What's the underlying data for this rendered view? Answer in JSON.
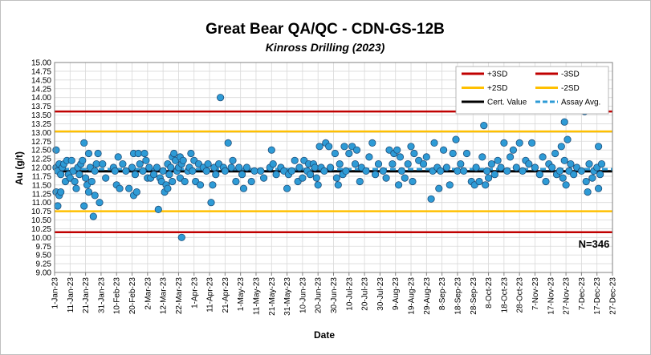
{
  "chart_data": {
    "type": "scatter",
    "title": "Great Bear QA/QC - CDN-GS-12B",
    "subtitle": "Kinross Drilling (2023)",
    "xlabel": "Date",
    "ylabel": "Au (g/t)",
    "ylim": [
      9.0,
      15.0
    ],
    "y_tick_step": 0.25,
    "xlim": [
      "2023-01-01",
      "2023-12-27"
    ],
    "x_tick_labels": [
      "1-Jan-23",
      "11-Jan-23",
      "21-Jan-23",
      "31-Jan-23",
      "10-Feb-23",
      "20-Feb-23",
      "2-Mar-23",
      "12-Mar-23",
      "22-Mar-23",
      "1-Apr-23",
      "11-Apr-23",
      "21-Apr-23",
      "1-May-23",
      "11-May-23",
      "21-May-23",
      "31-May-23",
      "10-Jun-23",
      "20-Jun-23",
      "30-Jun-23",
      "10-Jul-23",
      "20-Jul-23",
      "30-Jul-23",
      "9-Aug-23",
      "19-Aug-23",
      "29-Aug-23",
      "8-Sep-23",
      "18-Sep-23",
      "28-Sep-23",
      "8-Oct-23",
      "18-Oct-23",
      "28-Oct-23",
      "7-Nov-23",
      "17-Nov-23",
      "27-Nov-23",
      "7-Dec-23",
      "17-Dec-23",
      "27-Dec-23"
    ],
    "grid": true,
    "legend_position": "top-right",
    "annotation": "N=346",
    "reference_lines": [
      {
        "name": "+3SD",
        "value": 13.6,
        "color": "#c00000",
        "style": "solid"
      },
      {
        "name": "-3SD",
        "value": 10.15,
        "color": "#c00000",
        "style": "solid"
      },
      {
        "name": "+2SD",
        "value": 13.03,
        "color": "#ffc000",
        "style": "solid"
      },
      {
        "name": "-2SD",
        "value": 10.75,
        "color": "#ffc000",
        "style": "solid"
      },
      {
        "name": "Cert. Value",
        "value": 11.89,
        "color": "#000000",
        "style": "solid"
      },
      {
        "name": "Assay Avg.",
        "value": 11.95,
        "color": "#2e9bd6",
        "style": "dashed"
      }
    ],
    "series": [
      {
        "marker_color": "#2e9bd6",
        "points": [
          [
            "2023-01-02",
            12.5
          ],
          [
            "2023-01-02",
            11.3
          ],
          [
            "2023-01-02",
            12.0
          ],
          [
            "2023-01-03",
            11.9
          ],
          [
            "2023-01-03",
            10.9
          ],
          [
            "2023-01-04",
            11.2
          ],
          [
            "2023-01-04",
            12.1
          ],
          [
            "2023-01-05",
            11.8
          ],
          [
            "2023-01-05",
            11.3
          ],
          [
            "2023-01-06",
            12.0
          ],
          [
            "2023-01-07",
            12.1
          ],
          [
            "2023-01-08",
            11.6
          ],
          [
            "2023-01-09",
            12.2
          ],
          [
            "2023-01-10",
            11.8
          ],
          [
            "2023-01-11",
            11.7
          ],
          [
            "2023-01-12",
            12.2
          ],
          [
            "2023-01-13",
            11.9
          ],
          [
            "2023-01-14",
            11.6
          ],
          [
            "2023-01-15",
            11.4
          ],
          [
            "2023-01-16",
            12.0
          ],
          [
            "2023-01-17",
            11.8
          ],
          [
            "2023-01-18",
            12.1
          ],
          [
            "2023-01-19",
            12.2
          ],
          [
            "2023-01-20",
            10.9
          ],
          [
            "2023-01-20",
            12.7
          ],
          [
            "2023-01-21",
            11.7
          ],
          [
            "2023-01-22",
            11.5
          ],
          [
            "2023-01-23",
            12.4
          ],
          [
            "2023-01-23",
            11.3
          ],
          [
            "2023-01-24",
            12.0
          ],
          [
            "2023-01-25",
            11.6
          ],
          [
            "2023-01-26",
            10.6
          ],
          [
            "2023-01-27",
            11.9
          ],
          [
            "2023-01-27",
            11.2
          ],
          [
            "2023-01-28",
            12.1
          ],
          [
            "2023-01-29",
            12.4
          ],
          [
            "2023-01-30",
            11.0
          ],
          [
            "2023-02-01",
            12.1
          ],
          [
            "2023-02-03",
            11.7
          ],
          [
            "2023-02-08",
            12.0
          ],
          [
            "2023-02-09",
            11.9
          ],
          [
            "2023-02-10",
            11.5
          ],
          [
            "2023-02-11",
            12.3
          ],
          [
            "2023-02-12",
            11.4
          ],
          [
            "2023-02-14",
            12.1
          ],
          [
            "2023-02-16",
            11.9
          ],
          [
            "2023-02-18",
            11.4
          ],
          [
            "2023-02-20",
            12.0
          ],
          [
            "2023-02-21",
            11.2
          ],
          [
            "2023-02-21",
            12.4
          ],
          [
            "2023-02-22",
            11.8
          ],
          [
            "2023-02-23",
            11.3
          ],
          [
            "2023-02-24",
            12.4
          ],
          [
            "2023-02-25",
            12.1
          ],
          [
            "2023-02-27",
            11.9
          ],
          [
            "2023-02-28",
            12.4
          ],
          [
            "2023-03-01",
            12.2
          ],
          [
            "2023-03-02",
            11.7
          ],
          [
            "2023-03-03",
            12.0
          ],
          [
            "2023-03-04",
            11.7
          ],
          [
            "2023-03-06",
            11.8
          ],
          [
            "2023-03-08",
            12.0
          ],
          [
            "2023-03-09",
            10.8
          ],
          [
            "2023-03-10",
            11.7
          ],
          [
            "2023-03-11",
            11.6
          ],
          [
            "2023-03-12",
            11.9
          ],
          [
            "2023-03-13",
            11.3
          ],
          [
            "2023-03-14",
            11.5
          ],
          [
            "2023-03-15",
            12.1
          ],
          [
            "2023-03-15",
            11.4
          ],
          [
            "2023-03-16",
            11.8
          ],
          [
            "2023-03-17",
            12.0
          ],
          [
            "2023-03-18",
            12.3
          ],
          [
            "2023-03-18",
            11.6
          ],
          [
            "2023-03-19",
            12.4
          ],
          [
            "2023-03-20",
            12.2
          ],
          [
            "2023-03-21",
            11.9
          ],
          [
            "2023-03-22",
            12.0
          ],
          [
            "2023-03-23",
            12.3
          ],
          [
            "2023-03-23",
            11.7
          ],
          [
            "2023-03-24",
            12.1
          ],
          [
            "2023-03-24",
            10.0
          ],
          [
            "2023-03-25",
            12.2
          ],
          [
            "2023-03-26",
            11.6
          ],
          [
            "2023-03-28",
            11.9
          ],
          [
            "2023-03-29",
            12.0
          ],
          [
            "2023-03-30",
            12.4
          ],
          [
            "2023-03-31",
            11.9
          ],
          [
            "2023-04-01",
            12.2
          ],
          [
            "2023-04-02",
            11.6
          ],
          [
            "2023-04-04",
            12.1
          ],
          [
            "2023-04-05",
            11.5
          ],
          [
            "2023-04-07",
            12.0
          ],
          [
            "2023-04-09",
            11.9
          ],
          [
            "2023-04-10",
            12.1
          ],
          [
            "2023-04-12",
            11.0
          ],
          [
            "2023-04-13",
            11.5
          ],
          [
            "2023-04-14",
            12.0
          ],
          [
            "2023-04-15",
            11.8
          ],
          [
            "2023-04-17",
            12.1
          ],
          [
            "2023-04-18",
            14.0
          ],
          [
            "2023-04-20",
            12.0
          ],
          [
            "2023-04-21",
            11.9
          ],
          [
            "2023-04-23",
            12.7
          ],
          [
            "2023-04-25",
            12.0
          ],
          [
            "2023-04-26",
            12.2
          ],
          [
            "2023-04-28",
            11.6
          ],
          [
            "2023-04-30",
            12.0
          ],
          [
            "2023-05-02",
            11.8
          ],
          [
            "2023-05-03",
            11.4
          ],
          [
            "2023-05-05",
            12.0
          ],
          [
            "2023-05-08",
            11.6
          ],
          [
            "2023-05-10",
            11.9
          ],
          [
            "2023-05-14",
            11.9
          ],
          [
            "2023-05-16",
            11.7
          ],
          [
            "2023-05-20",
            12.0
          ],
          [
            "2023-05-21",
            12.5
          ],
          [
            "2023-05-22",
            12.1
          ],
          [
            "2023-05-24",
            11.8
          ],
          [
            "2023-05-27",
            12.0
          ],
          [
            "2023-05-29",
            11.9
          ],
          [
            "2023-05-31",
            11.4
          ],
          [
            "2023-06-01",
            11.8
          ],
          [
            "2023-06-03",
            11.9
          ],
          [
            "2023-06-05",
            12.2
          ],
          [
            "2023-06-07",
            11.6
          ],
          [
            "2023-06-08",
            12.0
          ],
          [
            "2023-06-10",
            11.7
          ],
          [
            "2023-06-11",
            12.2
          ],
          [
            "2023-06-13",
            11.9
          ],
          [
            "2023-06-14",
            12.1
          ],
          [
            "2023-06-15",
            11.8
          ],
          [
            "2023-06-17",
            12.1
          ],
          [
            "2023-06-18",
            12.0
          ],
          [
            "2023-06-19",
            11.7
          ],
          [
            "2023-06-20",
            11.5
          ],
          [
            "2023-06-21",
            12.6
          ],
          [
            "2023-06-22",
            12.0
          ],
          [
            "2023-06-24",
            11.9
          ],
          [
            "2023-06-25",
            12.7
          ],
          [
            "2023-06-27",
            12.6
          ],
          [
            "2023-06-28",
            12.0
          ],
          [
            "2023-07-01",
            12.4
          ],
          [
            "2023-07-02",
            11.7
          ],
          [
            "2023-07-03",
            11.5
          ],
          [
            "2023-07-04",
            12.1
          ],
          [
            "2023-07-06",
            11.8
          ],
          [
            "2023-07-07",
            12.6
          ],
          [
            "2023-07-08",
            11.9
          ],
          [
            "2023-07-10",
            12.4
          ],
          [
            "2023-07-12",
            12.6
          ],
          [
            "2023-07-14",
            12.1
          ],
          [
            "2023-07-15",
            12.5
          ],
          [
            "2023-07-17",
            11.6
          ],
          [
            "2023-07-18",
            12.0
          ],
          [
            "2023-07-21",
            11.9
          ],
          [
            "2023-07-23",
            12.3
          ],
          [
            "2023-07-25",
            12.7
          ],
          [
            "2023-07-27",
            11.8
          ],
          [
            "2023-07-29",
            12.1
          ],
          [
            "2023-08-01",
            11.9
          ],
          [
            "2023-08-03",
            11.7
          ],
          [
            "2023-08-05",
            12.5
          ],
          [
            "2023-08-07",
            12.1
          ],
          [
            "2023-08-08",
            12.4
          ],
          [
            "2023-08-10",
            12.5
          ],
          [
            "2023-08-11",
            11.5
          ],
          [
            "2023-08-12",
            12.3
          ],
          [
            "2023-08-13",
            11.9
          ],
          [
            "2023-08-15",
            11.7
          ],
          [
            "2023-08-17",
            12.1
          ],
          [
            "2023-08-19",
            12.6
          ],
          [
            "2023-08-20",
            11.6
          ],
          [
            "2023-08-21",
            12.4
          ],
          [
            "2023-08-24",
            12.2
          ],
          [
            "2023-08-27",
            12.1
          ],
          [
            "2023-08-29",
            12.3
          ],
          [
            "2023-09-01",
            11.1
          ],
          [
            "2023-09-02",
            11.9
          ],
          [
            "2023-09-03",
            12.7
          ],
          [
            "2023-09-05",
            12.0
          ],
          [
            "2023-09-06",
            11.4
          ],
          [
            "2023-09-07",
            11.9
          ],
          [
            "2023-09-09",
            12.5
          ],
          [
            "2023-09-11",
            12.0
          ],
          [
            "2023-09-13",
            11.5
          ],
          [
            "2023-09-15",
            12.4
          ],
          [
            "2023-09-17",
            12.8
          ],
          [
            "2023-09-18",
            11.9
          ],
          [
            "2023-09-20",
            12.1
          ],
          [
            "2023-09-22",
            11.9
          ],
          [
            "2023-09-24",
            12.4
          ],
          [
            "2023-09-27",
            11.6
          ],
          [
            "2023-09-29",
            11.5
          ],
          [
            "2023-09-30",
            12.0
          ],
          [
            "2023-10-02",
            11.6
          ],
          [
            "2023-10-04",
            12.3
          ],
          [
            "2023-10-05",
            13.2
          ],
          [
            "2023-10-06",
            11.5
          ],
          [
            "2023-10-07",
            11.9
          ],
          [
            "2023-10-08",
            11.7
          ],
          [
            "2023-10-10",
            12.1
          ],
          [
            "2023-10-12",
            11.8
          ],
          [
            "2023-10-14",
            12.2
          ],
          [
            "2023-10-16",
            12.0
          ],
          [
            "2023-10-18",
            12.7
          ],
          [
            "2023-10-20",
            11.9
          ],
          [
            "2023-10-22",
            12.3
          ],
          [
            "2023-10-24",
            12.5
          ],
          [
            "2023-10-26",
            12.0
          ],
          [
            "2023-10-28",
            12.7
          ],
          [
            "2023-10-30",
            11.9
          ],
          [
            "2023-11-01",
            12.2
          ],
          [
            "2023-11-03",
            12.1
          ],
          [
            "2023-11-05",
            12.7
          ],
          [
            "2023-11-07",
            12.0
          ],
          [
            "2023-11-10",
            11.8
          ],
          [
            "2023-11-12",
            12.3
          ],
          [
            "2023-11-14",
            11.6
          ],
          [
            "2023-11-16",
            12.1
          ],
          [
            "2023-11-18",
            12.0
          ],
          [
            "2023-11-20",
            12.4
          ],
          [
            "2023-11-21",
            11.8
          ],
          [
            "2023-11-23",
            11.9
          ],
          [
            "2023-11-24",
            12.6
          ],
          [
            "2023-11-25",
            11.7
          ],
          [
            "2023-11-26",
            13.3
          ],
          [
            "2023-11-26",
            12.2
          ],
          [
            "2023-11-27",
            11.5
          ],
          [
            "2023-11-28",
            12.8
          ],
          [
            "2023-11-29",
            11.9
          ],
          [
            "2023-11-30",
            12.1
          ],
          [
            "2023-12-02",
            11.8
          ],
          [
            "2023-12-04",
            12.0
          ],
          [
            "2023-12-07",
            11.9
          ],
          [
            "2023-12-09",
            13.6
          ],
          [
            "2023-12-10",
            11.6
          ],
          [
            "2023-12-11",
            11.3
          ],
          [
            "2023-12-12",
            12.1
          ],
          [
            "2023-12-14",
            11.7
          ],
          [
            "2023-12-15",
            11.9
          ],
          [
            "2023-12-17",
            12.0
          ],
          [
            "2023-12-18",
            11.4
          ],
          [
            "2023-12-18",
            12.6
          ],
          [
            "2023-12-19",
            11.8
          ],
          [
            "2023-12-20",
            12.1
          ]
        ]
      }
    ]
  }
}
